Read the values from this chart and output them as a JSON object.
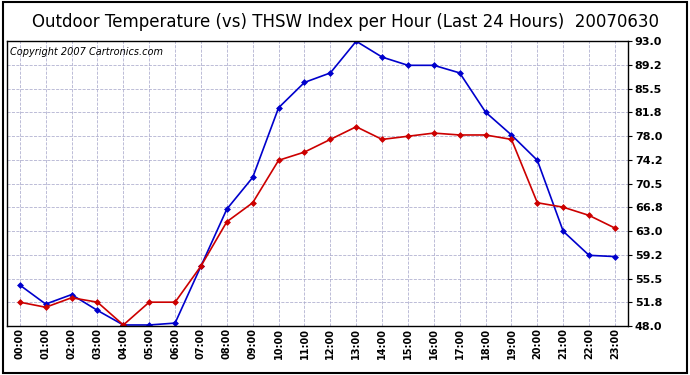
{
  "title": "Outdoor Temperature (vs) THSW Index per Hour (Last 24 Hours)  20070630",
  "copyright": "Copyright 2007 Cartronics.com",
  "hours": [
    "00:00",
    "01:00",
    "02:00",
    "03:00",
    "04:00",
    "05:00",
    "06:00",
    "07:00",
    "08:00",
    "09:00",
    "10:00",
    "11:00",
    "12:00",
    "13:00",
    "14:00",
    "15:00",
    "16:00",
    "17:00",
    "18:00",
    "19:00",
    "20:00",
    "21:00",
    "22:00",
    "23:00"
  ],
  "temp": [
    51.8,
    51.0,
    52.5,
    51.8,
    48.2,
    51.8,
    51.8,
    57.5,
    64.5,
    67.5,
    74.2,
    75.5,
    77.5,
    79.5,
    77.5,
    78.0,
    78.5,
    78.2,
    78.2,
    77.5,
    67.5,
    66.8,
    65.5,
    63.5
  ],
  "thsw": [
    54.5,
    51.5,
    53.0,
    50.5,
    48.2,
    48.2,
    48.5,
    57.5,
    66.5,
    71.5,
    82.5,
    86.5,
    88.0,
    93.0,
    90.5,
    89.2,
    89.2,
    88.0,
    81.8,
    78.2,
    74.2,
    63.0,
    59.2,
    59.0
  ],
  "temp_color": "#cc0000",
  "thsw_color": "#0000cc",
  "ylim_min": 48.0,
  "ylim_max": 93.0,
  "yticks": [
    48.0,
    51.8,
    55.5,
    59.2,
    63.0,
    66.8,
    70.5,
    74.2,
    78.0,
    81.8,
    85.5,
    89.2,
    93.0
  ],
  "background_color": "#ffffff",
  "plot_bg_color": "#ffffff",
  "grid_color": "#aaaacc",
  "title_fontsize": 12,
  "copyright_fontsize": 7,
  "markersize": 3,
  "linewidth": 1.2
}
